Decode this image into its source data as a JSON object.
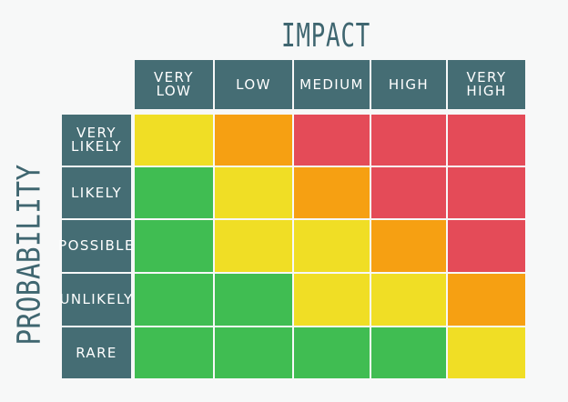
{
  "titles": {
    "impact": "IMPACT",
    "probability": "PROBABILITY"
  },
  "columns": [
    "Very\nLow",
    "Low",
    "Medium",
    "High",
    "Very\nHigh"
  ],
  "rows": [
    "Very\nLikely",
    "Likely",
    "Possible",
    "Unlikely",
    "Rare"
  ],
  "colors": {
    "background": "#f7f8f8",
    "header": "#456d74",
    "green": "#40bd52",
    "yellow": "#f0de25",
    "orange": "#f6a012",
    "red": "#e44b58"
  },
  "matrix": [
    [
      "yellow",
      "orange",
      "red",
      "red",
      "red"
    ],
    [
      "green",
      "yellow",
      "orange",
      "red",
      "red"
    ],
    [
      "green",
      "yellow",
      "yellow",
      "orange",
      "red"
    ],
    [
      "green",
      "green",
      "yellow",
      "yellow",
      "orange"
    ],
    [
      "green",
      "green",
      "green",
      "green",
      "yellow"
    ]
  ]
}
